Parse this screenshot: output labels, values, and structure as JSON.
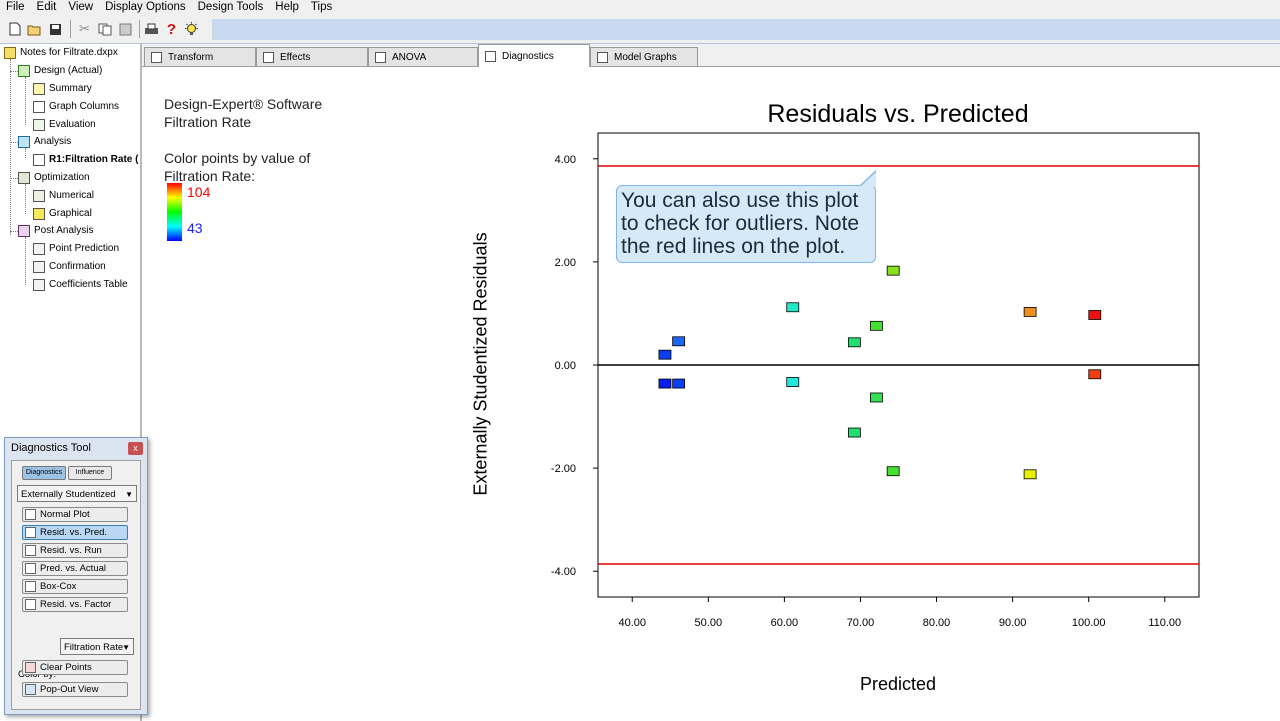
{
  "menu": [
    "File",
    "Edit",
    "View",
    "Display Options",
    "Design Tools",
    "Help",
    "Tips"
  ],
  "toolbar_icons": [
    "new-file-icon",
    "open-folder-icon",
    "save-icon",
    "cut-icon",
    "copy-icon",
    "paste-icon",
    "print-icon",
    "help-icon",
    "tip-bulb-icon"
  ],
  "tree": {
    "root": "Notes for Filtrate.dxpx",
    "items": [
      {
        "label": "Design (Actual)",
        "level": 1
      },
      {
        "label": "Summary",
        "level": 2
      },
      {
        "label": "Graph Columns",
        "level": 2
      },
      {
        "label": "Evaluation",
        "level": 2
      },
      {
        "label": "Analysis",
        "level": 1
      },
      {
        "label": "R1:Filtration Rate (",
        "level": 2,
        "bold": true
      },
      {
        "label": "Optimization",
        "level": 1
      },
      {
        "label": "Numerical",
        "level": 2
      },
      {
        "label": "Graphical",
        "level": 2
      },
      {
        "label": "Post Analysis",
        "level": 1
      },
      {
        "label": "Point Prediction",
        "level": 2
      },
      {
        "label": "Confirmation",
        "level": 2
      },
      {
        "label": "Coefficients Table",
        "level": 2
      }
    ]
  },
  "diag_tool": {
    "title": "Diagnostics Tool",
    "close": "x",
    "tab_diagnostics": "Diagnostics",
    "tab_influence": "Influence",
    "residual_type": "Externally Studentized",
    "buttons": [
      {
        "label": "Normal Plot",
        "active": false
      },
      {
        "label": "Resid. vs. Pred.",
        "active": true
      },
      {
        "label": "Resid. vs. Run",
        "active": false
      },
      {
        "label": "Pred. vs. Actual",
        "active": false
      },
      {
        "label": "Box-Cox",
        "active": false
      },
      {
        "label": "Resid. vs. Factor",
        "active": false
      }
    ],
    "color_by_label": "Color by:",
    "color_by_value": "Filtration Rate",
    "clear_points": "Clear Points",
    "pop_out": "Pop-Out View"
  },
  "tabs": [
    {
      "label": "Transform",
      "active": false
    },
    {
      "label": "Effects",
      "active": false
    },
    {
      "label": "ANOVA",
      "active": false
    },
    {
      "label": "Diagnostics",
      "active": true
    },
    {
      "label": "Model Graphs",
      "active": false
    }
  ],
  "info": {
    "line1": "Design-Expert® Software",
    "line2": "Filtration Rate",
    "color_line1": "Color points by value of",
    "color_line2": "Filtration Rate:",
    "legend_high": "104",
    "legend_low": "43"
  },
  "callout_text": "You can also use this plot to check for outliers.  Note the red lines on the plot.",
  "chart_data": {
    "type": "scatter",
    "title": "Residuals vs. Predicted",
    "xlabel": "Predicted",
    "ylabel": "Externally Studentized Residuals",
    "xlim": [
      35.5,
      114.5
    ],
    "ylim": [
      -4.5,
      4.5
    ],
    "xticks": [
      "40.00",
      "50.00",
      "60.00",
      "70.00",
      "80.00",
      "90.00",
      "100.00",
      "110.00"
    ],
    "yticks": [
      "4.00",
      "2.00",
      "0.00",
      "-2.00",
      "-4.00"
    ],
    "limit_lines": [
      3.86,
      -3.86
    ],
    "zero_line": 0,
    "color_range": [
      43,
      104
    ],
    "points": [
      {
        "x": 44.3,
        "y": 0.2,
        "color": "#0a3ef5"
      },
      {
        "x": 46.1,
        "y": 0.46,
        "color": "#1a66f5"
      },
      {
        "x": 44.3,
        "y": -0.36,
        "color": "#0a1ef2"
      },
      {
        "x": 46.1,
        "y": -0.36,
        "color": "#0a3ef5"
      },
      {
        "x": 61.1,
        "y": 1.12,
        "color": "#22e8c8"
      },
      {
        "x": 61.1,
        "y": -0.33,
        "color": "#22e8e0"
      },
      {
        "x": 69.2,
        "y": 0.44,
        "color": "#22e070"
      },
      {
        "x": 72.1,
        "y": 0.76,
        "color": "#44e030"
      },
      {
        "x": 72.1,
        "y": -0.63,
        "color": "#33e050"
      },
      {
        "x": 69.2,
        "y": -1.31,
        "color": "#22e070"
      },
      {
        "x": 74.3,
        "y": 1.83,
        "color": "#88e020"
      },
      {
        "x": 74.3,
        "y": -2.06,
        "color": "#44e030"
      },
      {
        "x": 92.3,
        "y": 1.03,
        "color": "#f08c20"
      },
      {
        "x": 92.3,
        "y": -2.12,
        "color": "#e6f000"
      },
      {
        "x": 100.8,
        "y": 0.97,
        "color": "#f01010"
      },
      {
        "x": 100.8,
        "y": -0.18,
        "color": "#f04010"
      }
    ]
  }
}
